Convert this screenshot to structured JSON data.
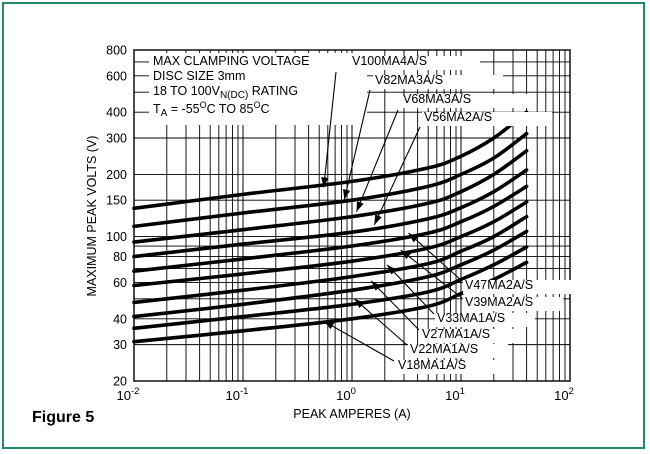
{
  "figure_label": "Figure 5",
  "chart_data": {
    "type": "line",
    "xscale": "log",
    "yscale": "log",
    "xlim": [
      0.01,
      100
    ],
    "ylim": [
      20,
      800
    ],
    "xlabel": "PEAK AMPERES (A)",
    "ylabel": "MAXIMUM PEAK VOLTS (V)",
    "grid": true,
    "x_ticks": [
      {
        "value": 0.01,
        "base": "10",
        "exp": "-2"
      },
      {
        "value": 0.1,
        "base": "10",
        "exp": "-1"
      },
      {
        "value": 1,
        "base": "10",
        "exp": "0"
      },
      {
        "value": 10,
        "base": "10",
        "exp": "1"
      },
      {
        "value": 100,
        "base": "10",
        "exp": "2"
      }
    ],
    "y_ticks": [
      {
        "value": 20,
        "label": "20"
      },
      {
        "value": 30,
        "label": "30"
      },
      {
        "value": 40,
        "label": "40"
      },
      {
        "value": 60,
        "label": "60"
      },
      {
        "value": 80,
        "label": "80"
      },
      {
        "value": 100,
        "label": "100"
      },
      {
        "value": 150,
        "label": "150"
      },
      {
        "value": 200,
        "label": "200"
      },
      {
        "value": 300,
        "label": "300"
      },
      {
        "value": 400,
        "label": "400"
      },
      {
        "value": 600,
        "label": "600"
      },
      {
        "value": 800,
        "label": "800"
      }
    ],
    "annotation": {
      "line1": "MAX CLAMPING VOLTAGE",
      "line2": "DISC SIZE 3mm",
      "line3_pre": "18 TO 100V",
      "line3_sub": "N(DC)",
      "line3_post": " RATING",
      "line4_pre": "T",
      "line4_sub": "A",
      "line4_mid": " = -55",
      "line4_sup1": "O",
      "line4_mid2": "C TO 85",
      "line4_sup2": "O",
      "line4_post": "C"
    },
    "series": [
      {
        "name": "V100MA4A/S",
        "x": [
          0.01,
          0.1,
          1,
          5,
          10,
          20,
          40
        ],
        "y": [
          137,
          160,
          185,
          215,
          245,
          300,
          400
        ]
      },
      {
        "name": "V82MA3A/S",
        "x": [
          0.01,
          0.1,
          1,
          5,
          10,
          20,
          40
        ],
        "y": [
          112,
          130,
          150,
          175,
          200,
          240,
          315
        ]
      },
      {
        "name": "V68MA3A/S",
        "x": [
          0.01,
          0.1,
          1,
          5,
          10,
          20,
          40
        ],
        "y": [
          94,
          108,
          125,
          145,
          165,
          200,
          260
        ]
      },
      {
        "name": "V56MA2A/S",
        "x": [
          0.01,
          0.1,
          1,
          5,
          10,
          20,
          40
        ],
        "y": [
          80,
          92,
          105,
          122,
          138,
          165,
          210
        ]
      },
      {
        "name": "V47MA2A/S",
        "x": [
          0.01,
          0.1,
          1,
          5,
          10,
          20,
          40
        ],
        "y": [
          68,
          78,
          90,
          104,
          118,
          140,
          175
        ]
      },
      {
        "name": "V39MA2A/S",
        "x": [
          0.01,
          0.1,
          1,
          5,
          10,
          20,
          40
        ],
        "y": [
          58,
          66,
          76,
          88,
          100,
          118,
          147
        ]
      },
      {
        "name": "V33MA1A/S",
        "x": [
          0.01,
          0.1,
          1,
          5,
          10,
          20,
          40
        ],
        "y": [
          48,
          55,
          64,
          74,
          85,
          100,
          125
        ]
      },
      {
        "name": "V27MA1A/S",
        "x": [
          0.01,
          0.1,
          1,
          5,
          10,
          20,
          40
        ],
        "y": [
          41,
          47,
          55,
          64,
          73,
          86,
          106
        ]
      },
      {
        "name": "V22MA1A/S",
        "x": [
          0.01,
          0.1,
          1,
          5,
          10,
          20,
          40
        ],
        "y": [
          36,
          41,
          47,
          54,
          62,
          73,
          89
        ]
      },
      {
        "name": "V18MA1A/S",
        "x": [
          0.01,
          0.1,
          1,
          5,
          10,
          20,
          40
        ],
        "y": [
          31,
          35,
          40,
          46,
          53,
          62,
          75
        ]
      }
    ],
    "callouts": [
      {
        "series": 0,
        "text_x": 0.0,
        "text_y": 0
      },
      {
        "series": 1
      },
      {
        "series": 2
      },
      {
        "series": 3
      },
      {
        "series": 4
      },
      {
        "series": 5
      },
      {
        "series": 6
      },
      {
        "series": 7
      },
      {
        "series": 8
      },
      {
        "series": 9
      }
    ]
  }
}
